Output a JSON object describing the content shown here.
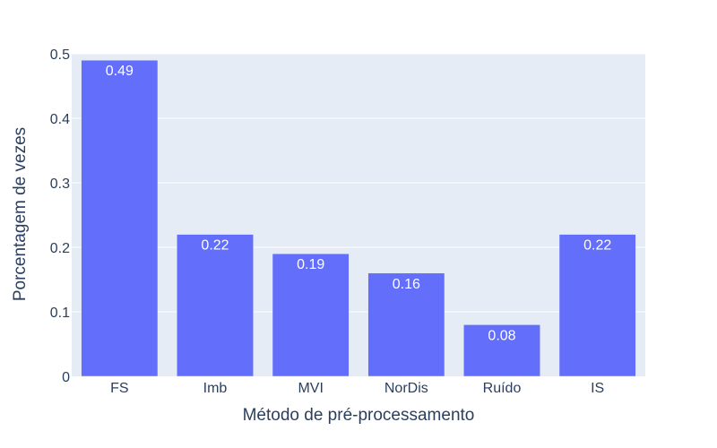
{
  "chart_data": {
    "type": "bar",
    "categories": [
      "FS",
      "Imb",
      "MVI",
      "NorDis",
      "Ruído",
      "IS"
    ],
    "values": [
      0.49,
      0.22,
      0.19,
      0.16,
      0.08,
      0.22
    ],
    "value_labels": [
      "0.49",
      "0.22",
      "0.19",
      "0.16",
      "0.08",
      "0.22"
    ],
    "title": "",
    "xlabel": "Método de pré-processamento",
    "ylabel": "Porcentagem de vezes",
    "ylim": [
      0,
      0.5
    ],
    "yticks": [
      0,
      0.1,
      0.2,
      0.3,
      0.4,
      0.5
    ],
    "ytick_labels": [
      "0",
      "0.1",
      "0.2",
      "0.3",
      "0.4",
      "0.5"
    ],
    "grid": true,
    "colors": {
      "bar": "#636efa",
      "plot_bg": "#e5ecf6",
      "grid": "#ffffff",
      "text": "#2a3f5f"
    }
  }
}
